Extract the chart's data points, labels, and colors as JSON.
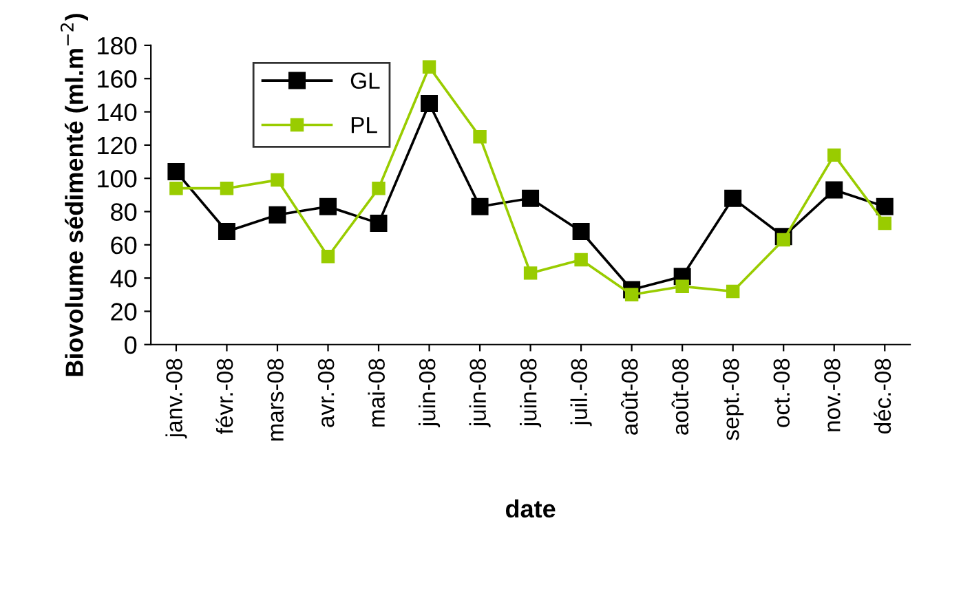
{
  "chart_data": {
    "type": "line",
    "xlabel": "date",
    "ylabel": "Biovolume sédimenté (ml.m$^{−2}$)",
    "categories": [
      "janv.-08",
      "févr.-08",
      "mars-08",
      "avr.-08",
      "mai-08",
      "juin-08",
      "juin-08",
      "juin-08",
      "juil.-08",
      "août-08",
      "août-08",
      "sept.-08",
      "oct.-08",
      "nov.-08",
      "déc.-08"
    ],
    "series": [
      {
        "name": "GL",
        "color": "#000000",
        "values": [
          104,
          68,
          78,
          83,
          73,
          145,
          83,
          88,
          68,
          33,
          41,
          88,
          65,
          93,
          83
        ]
      },
      {
        "name": "PL",
        "color": "#99cc00",
        "values": [
          94,
          94,
          99,
          53,
          94,
          167,
          125,
          43,
          51,
          30,
          35,
          32,
          63,
          114,
          73
        ]
      }
    ],
    "ylim": [
      0,
      180
    ],
    "yticks": [
      0,
      20,
      40,
      60,
      80,
      100,
      120,
      140,
      160,
      180
    ],
    "grid": false,
    "legend": "top left",
    "marker": "square",
    "line_style": "solid"
  }
}
